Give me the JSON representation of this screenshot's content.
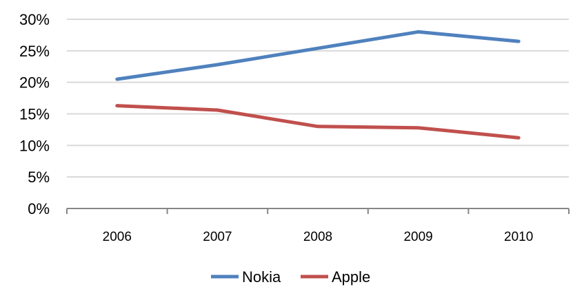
{
  "chart_data": {
    "type": "line",
    "title": "",
    "xlabel": "",
    "ylabel": "",
    "categories": [
      "2006",
      "2007",
      "2008",
      "2009",
      "2010"
    ],
    "ylim": [
      0,
      30
    ],
    "y_ticks": [
      0,
      5,
      10,
      15,
      20,
      25,
      30
    ],
    "y_tick_labels": [
      "0%",
      "5%",
      "10%",
      "15%",
      "20%",
      "25%",
      "30%"
    ],
    "grid": "horizontal",
    "legend_position": "bottom",
    "series": [
      {
        "name": "Nokia",
        "values": [
          20.5,
          22.8,
          25.4,
          28.0,
          26.5
        ],
        "color": "#4F81BD"
      },
      {
        "name": "Apple",
        "values": [
          16.3,
          15.6,
          13.0,
          12.8,
          11.2
        ],
        "color": "#C0504D"
      }
    ]
  }
}
